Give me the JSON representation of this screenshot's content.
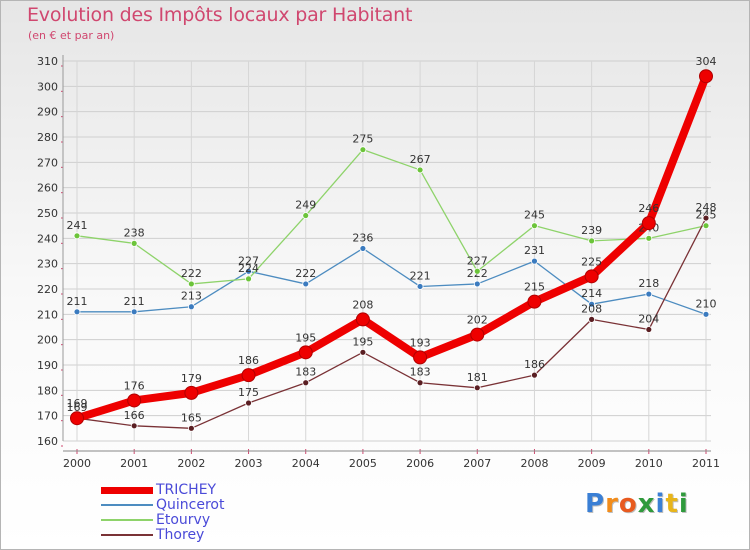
{
  "title": "Evolution des Impôts locaux par Habitant",
  "subtitle": "(en € et par an)",
  "brand": [
    "P",
    "r",
    "o",
    "x",
    "i",
    "t",
    "i"
  ],
  "brand_colors": [
    "#3a7fd5",
    "#f28c1a",
    "#e85a1f",
    "#2f9a3c",
    "#3a7fd5",
    "#e8b51a",
    "#2f9a3c"
  ],
  "chart_data": {
    "type": "line",
    "title": "Evolution des Impôts locaux par Habitant",
    "subtitle": "(en € et par an)",
    "xlabel": "",
    "ylabel": "",
    "ylim": [
      160,
      310
    ],
    "yticks": [
      160,
      170,
      180,
      190,
      200,
      210,
      220,
      230,
      240,
      250,
      260,
      270,
      280,
      290,
      300,
      310
    ],
    "grid": true,
    "legend_position": "bottom-left",
    "x": [
      "2000",
      "2001",
      "2002",
      "2003",
      "2004",
      "2005",
      "2006",
      "2007",
      "2008",
      "2009",
      "2010",
      "2011"
    ],
    "series": [
      {
        "name": "Quincerot",
        "color": "#4d8cc0",
        "dot": "#3b7bbf",
        "width": 1.3,
        "values": [
          211,
          211,
          213,
          227,
          222,
          236,
          221,
          222,
          231,
          214,
          218,
          210
        ],
        "labels": [
          "211",
          "211",
          "213",
          "227",
          "222",
          "236",
          "221",
          "222",
          "231",
          "214",
          "218",
          "210"
        ]
      },
      {
        "name": "Etourvy",
        "color": "#8ed36a",
        "dot": "#6cc43a",
        "width": 1.3,
        "values": [
          241,
          238,
          222,
          224,
          249,
          275,
          267,
          227,
          245,
          239,
          240,
          245
        ],
        "labels": [
          "241",
          "238",
          "222",
          "224",
          "249",
          "275",
          "267",
          "227",
          "245",
          "239",
          "240",
          "245"
        ]
      },
      {
        "name": "Thorey",
        "color": "#7a3236",
        "dot": "#5a1e22",
        "width": 1.3,
        "values": [
          169,
          166,
          165,
          175,
          183,
          195,
          183,
          181,
          186,
          208,
          204,
          248
        ],
        "labels": [
          "169",
          "166",
          "165",
          "175",
          "183",
          "195",
          "183",
          "181",
          "186",
          "208",
          "204",
          "248"
        ]
      },
      {
        "name": "TRICHEY",
        "color": "#ee0000",
        "dot": "#ee0000",
        "width": 8,
        "values": [
          169,
          176,
          179,
          186,
          195,
          208,
          193,
          202,
          215,
          225,
          246,
          304
        ],
        "labels": [
          "169",
          "176",
          "179",
          "186",
          "195",
          "208",
          "193",
          "202",
          "215",
          "225",
          "246",
          "304"
        ]
      }
    ]
  },
  "legend": [
    {
      "name": "TRICHEY",
      "color": "#ee0000",
      "thickness": 7
    },
    {
      "name": "Quincerot",
      "color": "#4d8cc0",
      "thickness": 2
    },
    {
      "name": "Etourvy",
      "color": "#8ed36a",
      "thickness": 2
    },
    {
      "name": "Thorey",
      "color": "#7a3236",
      "thickness": 2
    }
  ]
}
